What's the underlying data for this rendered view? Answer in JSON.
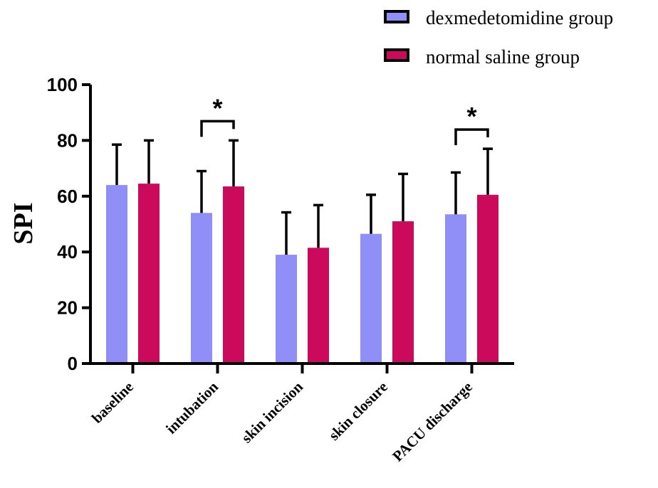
{
  "chart_data": {
    "type": "bar",
    "title": "",
    "xlabel": "",
    "ylabel": "SPI",
    "ylim": [
      0,
      100
    ],
    "yticks": [
      "0",
      "20",
      "40",
      "60",
      "80",
      "100"
    ],
    "ytick_values": [
      0,
      20,
      40,
      60,
      80,
      100
    ],
    "categories": [
      "baseline",
      "intubation",
      "skin incision",
      "skin closure",
      "PACU discharge"
    ],
    "series": [
      {
        "name": "dexmedetomidine group",
        "color": "#8f8ff7",
        "values": [
          64,
          54,
          39,
          46.5,
          53.5
        ],
        "error": [
          14.5,
          15,
          15.2,
          14,
          15
        ]
      },
      {
        "name": "normal saline group",
        "color": "#cc0a5c",
        "values": [
          64.5,
          63.5,
          41.5,
          51,
          60.5
        ],
        "error": [
          15.5,
          16.5,
          15.3,
          17,
          16.5
        ]
      }
    ],
    "significance": [
      {
        "category": "intubation",
        "label": "*"
      },
      {
        "category": "PACU discharge",
        "label": "*"
      }
    ],
    "grid": false,
    "legend_position": "top-right",
    "error_bars": "upper"
  }
}
